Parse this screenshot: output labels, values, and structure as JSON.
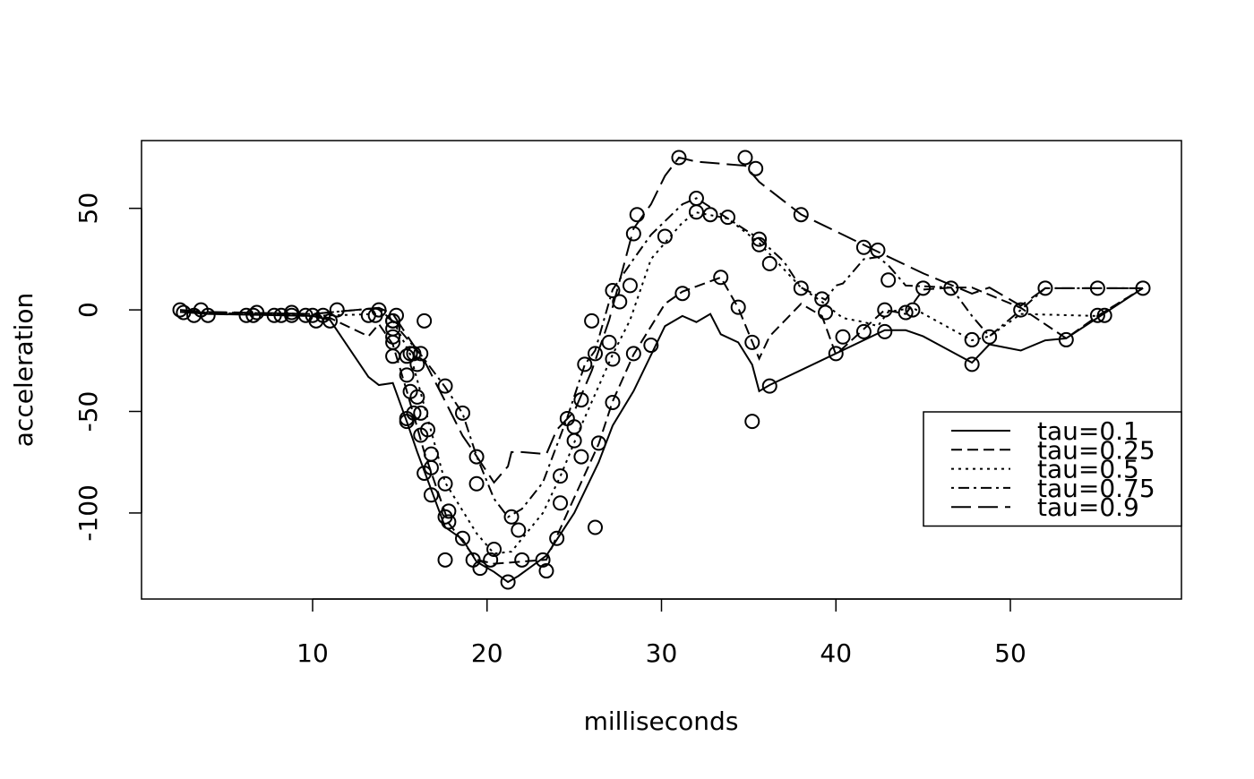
{
  "chart_data": {
    "type": "line",
    "x_label": "milliseconds",
    "y_label": "acceleration",
    "xlim": [
      0.192,
      59.808
    ],
    "ylim": [
      -142.36,
      83.36
    ],
    "xticks": [
      10,
      20,
      30,
      40,
      50
    ],
    "yticks": [
      -100,
      -50,
      0,
      50
    ],
    "legend_position": "right",
    "points": {
      "color": "#000000",
      "x": [
        2.4,
        2.6,
        3.2,
        3.6,
        4.0,
        6.2,
        6.6,
        6.8,
        7.8,
        8.2,
        8.8,
        8.8,
        9.6,
        10.0,
        10.2,
        10.6,
        11.0,
        11.4,
        13.2,
        13.6,
        13.8,
        14.6,
        14.6,
        14.6,
        14.6,
        14.6,
        14.6,
        14.8,
        15.4,
        15.4,
        15.4,
        15.4,
        15.6,
        15.6,
        15.8,
        15.8,
        16.0,
        16.0,
        16.2,
        16.2,
        16.2,
        16.4,
        16.4,
        16.6,
        16.8,
        16.8,
        16.8,
        17.6,
        17.6,
        17.6,
        17.6,
        17.8,
        17.8,
        18.6,
        18.6,
        19.2,
        19.4,
        19.4,
        19.6,
        20.2,
        20.4,
        21.2,
        21.4,
        21.8,
        22.0,
        23.2,
        23.4,
        24.0,
        24.2,
        24.2,
        24.6,
        25.0,
        25.0,
        25.4,
        25.4,
        25.6,
        26.0,
        26.2,
        26.2,
        26.4,
        27.0,
        27.2,
        27.2,
        27.2,
        27.6,
        28.2,
        28.4,
        28.4,
        28.6,
        29.4,
        30.2,
        31.0,
        31.2,
        32.0,
        32.0,
        32.8,
        33.4,
        33.8,
        34.4,
        34.8,
        35.2,
        35.2,
        35.4,
        35.6,
        35.6,
        36.2,
        36.2,
        38.0,
        38.0,
        39.2,
        39.4,
        40.0,
        40.4,
        41.6,
        41.6,
        42.4,
        42.8,
        42.8,
        43.0,
        44.0,
        44.4,
        45.0,
        46.6,
        47.8,
        47.8,
        48.8,
        50.6,
        52.0,
        53.2,
        55.0,
        55.0,
        55.4,
        57.6
      ],
      "y": [
        0.0,
        -1.3,
        -2.7,
        0.0,
        -2.7,
        -2.7,
        -2.7,
        -1.3,
        -2.7,
        -2.7,
        -1.3,
        -2.7,
        -2.7,
        -2.7,
        -5.4,
        -2.7,
        -5.4,
        0.0,
        -2.7,
        -2.7,
        0.0,
        -13.3,
        -5.4,
        -5.4,
        -9.3,
        -16.0,
        -22.8,
        -2.7,
        -22.8,
        -32.1,
        -53.5,
        -54.9,
        -40.2,
        -21.5,
        -21.5,
        -50.8,
        -42.9,
        -26.8,
        -21.5,
        -50.8,
        -61.7,
        -5.4,
        -80.4,
        -59.0,
        -71.0,
        -91.1,
        -77.7,
        -37.5,
        -85.6,
        -123.1,
        -101.9,
        -99.1,
        -104.4,
        -112.5,
        -50.8,
        -123.1,
        -85.6,
        -72.3,
        -127.2,
        -123.1,
        -117.9,
        -134.0,
        -101.9,
        -108.4,
        -123.1,
        -123.1,
        -128.5,
        -112.5,
        -95.1,
        -81.8,
        -53.5,
        -64.4,
        -57.6,
        -72.3,
        -44.3,
        -26.8,
        -5.4,
        -107.1,
        -21.5,
        -65.6,
        -16.0,
        -45.6,
        -24.2,
        9.5,
        4.0,
        12.0,
        -21.5,
        37.5,
        46.9,
        -17.4,
        36.2,
        75.0,
        8.1,
        54.9,
        48.2,
        46.9,
        16.0,
        45.6,
        1.3,
        75.0,
        -16.0,
        -54.9,
        69.6,
        34.8,
        32.1,
        -37.5,
        22.8,
        46.9,
        10.7,
        5.4,
        -1.3,
        -21.5,
        -13.3,
        30.8,
        -10.7,
        29.4,
        0.0,
        -10.7,
        14.7,
        -1.3,
        0.0,
        10.7,
        10.7,
        -26.8,
        -14.7,
        -13.3,
        0.0,
        10.7,
        -14.7,
        -2.7,
        10.7,
        -2.7,
        10.7
      ]
    },
    "series": [
      {
        "name": "tau=0.1",
        "color": "#000000",
        "linestyle": "solid",
        "x": [
          2.4,
          4,
          10,
          11,
          13.2,
          13.8,
          14.6,
          15.4,
          16,
          17.6,
          18.6,
          19.4,
          20.4,
          21.2,
          21.8,
          23.4,
          25,
          26.4,
          27.2,
          28.4,
          30.2,
          31.2,
          32,
          32.8,
          33.4,
          34.4,
          35.2,
          35.6,
          36.2,
          42.8,
          44,
          45,
          47.8,
          48.8,
          50.6,
          52,
          53.2,
          57.6
        ],
        "values": [
          -1,
          -2,
          -3,
          -5,
          -33,
          -37,
          -36,
          -55,
          -70,
          -107,
          -113,
          -124,
          -129,
          -134,
          -131,
          -121,
          -100,
          -75,
          -57,
          -40,
          -8,
          -3,
          -6,
          -2,
          -12,
          -16,
          -27,
          -40,
          -37,
          -10,
          -10,
          -13,
          -26,
          -17,
          -20,
          -15,
          -14,
          10.7
        ]
      },
      {
        "name": "tau=0.25",
        "color": "#000000",
        "linestyle": "dashed",
        "x": [
          2.4,
          10,
          11,
          13.2,
          13.8,
          14.6,
          15.4,
          16.4,
          17.8,
          19.4,
          20.4,
          23.4,
          24.6,
          26.4,
          27.2,
          28.4,
          30.2,
          31.2,
          33.4,
          34.4,
          35.6,
          36.2,
          38,
          39.2,
          40,
          42.8,
          44,
          45,
          46.6,
          47.8,
          50.6,
          53.2,
          55,
          57.6
        ],
        "values": [
          -1,
          -3,
          -4,
          -13,
          -7,
          -17,
          -40,
          -70,
          -105,
          -123,
          -125,
          -123,
          -100,
          -66,
          -45,
          -22,
          3,
          9,
          16,
          1,
          -24,
          -13,
          3,
          -3,
          -22,
          0,
          -2,
          10,
          11,
          11,
          1,
          -14,
          -3,
          10.7
        ]
      },
      {
        "name": "tau=0.5",
        "color": "#000000",
        "linestyle": "dotted",
        "x": [
          2.4,
          10,
          13.8,
          14.6,
          15.6,
          17.6,
          19.4,
          20.4,
          21.4,
          23.2,
          24.2,
          25.4,
          27.2,
          28.2,
          29.4,
          31.2,
          32,
          33.8,
          35.6,
          38,
          39.2,
          40.4,
          41.6,
          42.4,
          43,
          44.4,
          47.8,
          48.8,
          50.6,
          55,
          57.6
        ],
        "values": [
          -1,
          -3,
          -2,
          -5,
          -22,
          -85,
          -110,
          -120,
          -119,
          -100,
          -82,
          -57,
          -22,
          -5,
          25,
          43,
          48,
          45,
          33,
          11,
          4,
          -4,
          -6,
          -8,
          -1,
          1,
          -15,
          -13,
          -2,
          -3,
          10.7
        ]
      },
      {
        "name": "tau=0.75",
        "color": "#000000",
        "linestyle": "dotdash",
        "x": [
          2.4,
          10,
          13.8,
          14.6,
          16.2,
          17.6,
          18.6,
          19.4,
          20.4,
          21.2,
          22,
          23.2,
          24.6,
          25.6,
          26.2,
          27.2,
          28.4,
          29.4,
          31.2,
          32,
          33.8,
          35.6,
          37,
          38,
          39.4,
          40,
          40.4,
          41.6,
          42.4,
          43,
          44,
          46.6,
          47.8,
          48.8,
          50.6,
          52,
          57.6
        ],
        "values": [
          -1,
          -2,
          1,
          -6,
          -22,
          -38,
          -51,
          -72,
          -93,
          -102,
          -98,
          -85,
          -53,
          -27,
          -20,
          10,
          25,
          37,
          52,
          55,
          45,
          35,
          24,
          11,
          5,
          12,
          13,
          25,
          26,
          22,
          12,
          11,
          -3,
          -13,
          0,
          10.7,
          10.7
        ]
      },
      {
        "name": "tau=0.9",
        "color": "#000000",
        "linestyle": "longdash",
        "x": [
          2.4,
          4,
          10,
          13.8,
          14.6,
          15.6,
          16.4,
          17.6,
          18.6,
          19.4,
          20.4,
          21.2,
          21.4,
          22,
          23.4,
          24,
          25,
          26,
          27,
          28.4,
          29.4,
          30.2,
          31,
          32,
          34.8,
          35.6,
          38,
          40.4,
          42.8,
          45,
          47.8,
          48.8,
          50.6,
          52,
          57.6
        ],
        "values": [
          0,
          -1,
          -2,
          1,
          -2,
          -15,
          -25,
          -45,
          -62,
          -72,
          -85,
          -77,
          -70,
          -70,
          -71,
          -59,
          -50,
          -30,
          -5,
          40,
          52,
          66,
          75,
          73,
          71,
          63,
          47,
          37,
          27,
          18,
          8,
          11,
          2,
          10.7,
          10.7
        ]
      }
    ]
  }
}
